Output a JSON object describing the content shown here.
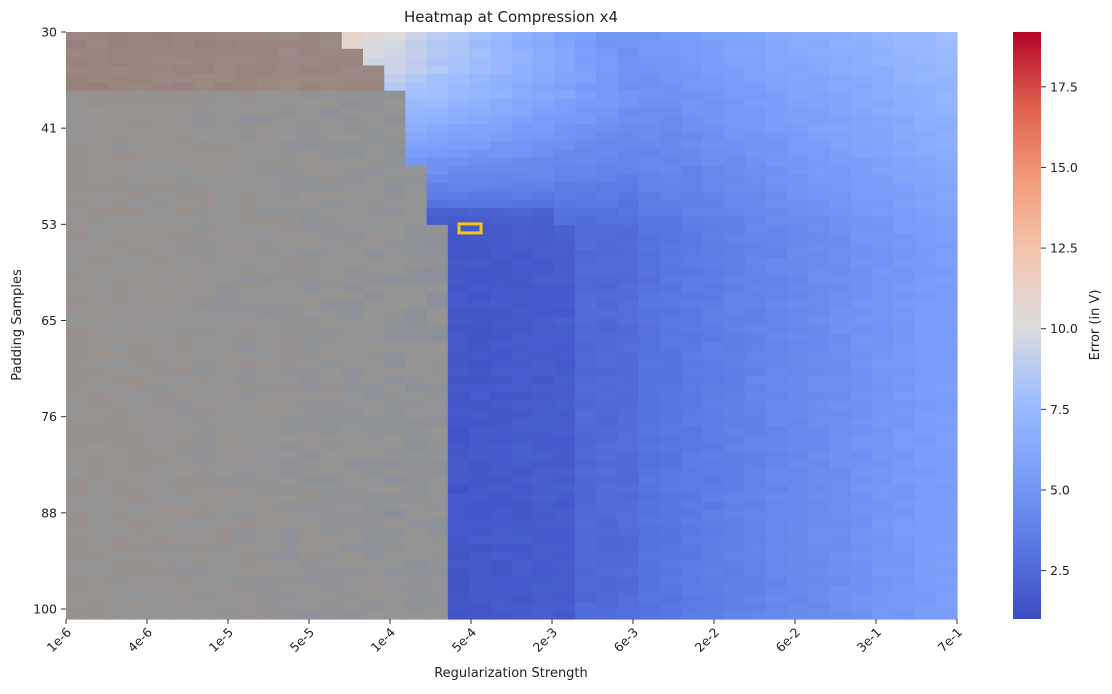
{
  "chart_data": {
    "type": "heatmap",
    "title": "Heatmap at Compression x4",
    "xlabel": "Regularization Strength",
    "ylabel": "Padding Samples",
    "x_tick_labels": [
      "1e-6",
      "4e-6",
      "1e-5",
      "5e-5",
      "1e-4",
      "5e-4",
      "2e-3",
      "6e-3",
      "2e-2",
      "6e-2",
      "3e-1",
      "7e-1"
    ],
    "y_tick_labels": [
      "30",
      "41",
      "53",
      "65",
      "76",
      "88",
      "100"
    ],
    "y_range": [
      30,
      100
    ],
    "colorbar": {
      "label": "Error (in V)",
      "range": [
        1.0,
        19.2
      ],
      "ticks": [
        "2.5",
        "5.0",
        "7.5",
        "10.0",
        "12.5",
        "15.0",
        "17.5"
      ],
      "tick_values": [
        2.5,
        5.0,
        7.5,
        10.0,
        12.5,
        15.0,
        17.5
      ],
      "colormap": "coolwarm"
    },
    "grid_shape": {
      "columns": 42,
      "rows": 70
    },
    "unevaluated_region": {
      "description": "grayed-out cells where the search region is masked",
      "boundary_column_by_row": [
        {
          "from_row": 30,
          "to_row": 31,
          "first_valid_column": 13
        },
        {
          "from_row": 32,
          "to_row": 33,
          "first_valid_column": 14
        },
        {
          "from_row": 34,
          "to_row": 36,
          "first_valid_column": 15
        },
        {
          "from_row": 37,
          "to_row": 39,
          "first_valid_column": 16
        },
        {
          "from_row": 40,
          "to_row": 45,
          "first_valid_column": 16
        },
        {
          "from_row": 46,
          "to_row": 47,
          "first_valid_column": 17
        },
        {
          "from_row": 48,
          "to_row": 52,
          "first_valid_column": 17
        },
        {
          "from_row": 53,
          "to_row": 100,
          "first_valid_column": 18
        }
      ]
    },
    "highlight": {
      "x_label": "5e-4",
      "y_value": 53,
      "color": "#f5c518"
    },
    "grid": false
  }
}
